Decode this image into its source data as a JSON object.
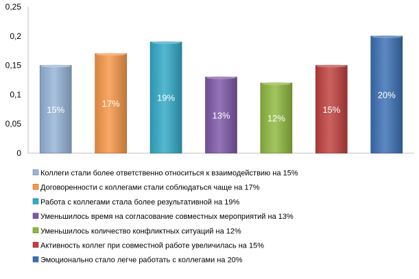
{
  "chart_data": {
    "type": "bar",
    "title": "",
    "xlabel": "",
    "ylabel": "",
    "ylim": [
      0,
      0.25
    ],
    "yticks": [
      "0",
      "0,05",
      "0,1",
      "0,15",
      "0,2",
      "0,25"
    ],
    "grid": false,
    "legend_position": "bottom",
    "series": [
      {
        "name": "Коллеги стали более ответственно  относиться к взаимодействию на 15%",
        "value": 0.15,
        "label": "15%",
        "color": "#95b3d7"
      },
      {
        "name": "Договоренности  с коллегами стали соблюдаться чаще на 17%",
        "value": 0.17,
        "label": "17%",
        "color": "#f79646"
      },
      {
        "name": "Работа с коллегами стала более результативной на 19%",
        "value": 0.19,
        "label": "19%",
        "color": "#31a9c7"
      },
      {
        "name": "Уменьшилось  время  на согласование совместных  мероприятий  на 13%",
        "value": 0.13,
        "label": "13%",
        "color": "#7e57a8"
      },
      {
        "name": "Уменьшилось  количество  конфликтных  ситуаций на 12%",
        "value": 0.12,
        "label": "12%",
        "color": "#8fb83e"
      },
      {
        "name": "Активность  коллег при совместной работе увеличилась на 15%",
        "value": 0.15,
        "label": "15%",
        "color": "#c0403d"
      },
      {
        "name": "Эмоционально  стало легче работать с коллегами на 20%",
        "value": 0.2,
        "label": "20%",
        "color": "#3a6fb5"
      }
    ]
  }
}
